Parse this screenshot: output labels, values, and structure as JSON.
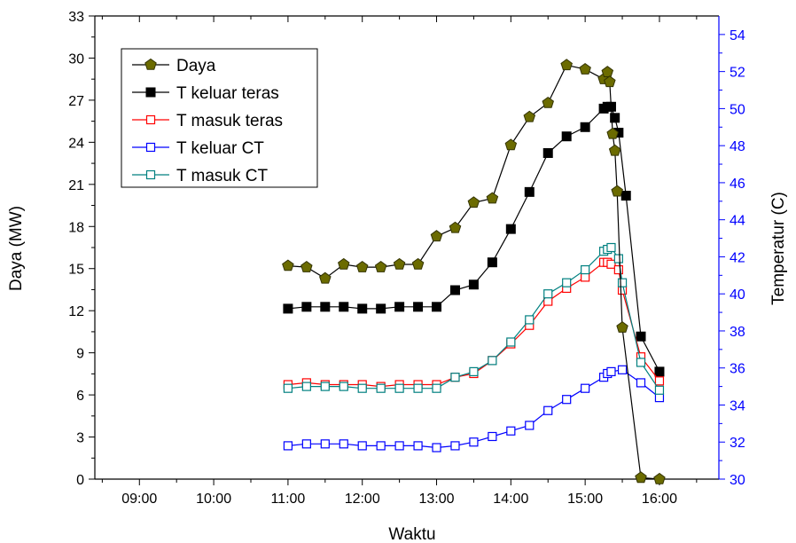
{
  "chart_data": {
    "type": "line",
    "title": "",
    "xlabel": "Waktu",
    "ylabel": "Daya (MW)",
    "y2label": "Temperatur (C)",
    "x_ticks": [
      "09:00",
      "10:00",
      "11:00",
      "12:00",
      "13:00",
      "14:00",
      "15:00",
      "16:00"
    ],
    "xlim": [
      8.4,
      16.8
    ],
    "ylim": [
      0,
      33
    ],
    "y_ticks": [
      0,
      3,
      6,
      9,
      12,
      15,
      18,
      21,
      24,
      27,
      30,
      33
    ],
    "y2lim": [
      30,
      55
    ],
    "y2_ticks": [
      30,
      32,
      34,
      36,
      38,
      40,
      42,
      44,
      46,
      48,
      50,
      52,
      54
    ],
    "grid": false,
    "legend_position": "top-left",
    "colors": {
      "axis": "#000000",
      "right_axis": "#0000ff"
    },
    "series": [
      {
        "name": "Daya",
        "axis": "left",
        "color": "#000000",
        "fill": "#6b6b00",
        "marker": "pentagon",
        "x": [
          11.0,
          11.25,
          11.5,
          11.75,
          12.0,
          12.25,
          12.5,
          12.75,
          13.0,
          13.25,
          13.5,
          13.75,
          14.0,
          14.25,
          14.5,
          14.75,
          15.0,
          15.25,
          15.3,
          15.33,
          15.37,
          15.4,
          15.43,
          15.5,
          15.75,
          16.0
        ],
        "y": [
          15.2,
          15.1,
          14.3,
          15.3,
          15.1,
          15.1,
          15.3,
          15.3,
          17.3,
          17.9,
          19.7,
          20.0,
          23.8,
          25.8,
          26.8,
          29.5,
          29.2,
          28.5,
          29.0,
          28.3,
          24.6,
          23.4,
          20.5,
          10.8,
          0.1,
          0.0
        ]
      },
      {
        "name": "T keluar teras",
        "axis": "right",
        "color": "#000000",
        "fill": "#000000",
        "marker": "square",
        "x": [
          11.0,
          11.25,
          11.5,
          11.75,
          12.0,
          12.25,
          12.5,
          12.75,
          13.0,
          13.25,
          13.5,
          13.75,
          14.0,
          14.25,
          14.5,
          14.75,
          15.0,
          15.25,
          15.3,
          15.35,
          15.4,
          15.45,
          15.55,
          15.75,
          16.0
        ],
        "y": [
          39.2,
          39.3,
          39.3,
          39.3,
          39.2,
          39.2,
          39.3,
          39.3,
          39.3,
          40.2,
          40.5,
          41.7,
          43.5,
          45.5,
          47.6,
          48.5,
          49.0,
          50.0,
          50.1,
          50.1,
          49.5,
          48.7,
          45.3,
          37.7,
          35.8
        ]
      },
      {
        "name": "T masuk teras",
        "axis": "right",
        "color": "#ff0000",
        "fill": "#ffffff",
        "marker": "open-square",
        "x": [
          11.0,
          11.25,
          11.5,
          11.75,
          12.0,
          12.25,
          12.5,
          12.75,
          13.0,
          13.25,
          13.5,
          13.75,
          14.0,
          14.25,
          14.5,
          14.75,
          15.0,
          15.25,
          15.3,
          15.35,
          15.45,
          15.5,
          15.75,
          16.0
        ],
        "y": [
          35.1,
          35.2,
          35.1,
          35.1,
          35.1,
          35.0,
          35.1,
          35.1,
          35.1,
          35.5,
          35.7,
          36.4,
          37.3,
          38.3,
          39.6,
          40.3,
          40.9,
          41.7,
          41.7,
          41.6,
          41.3,
          40.2,
          36.6,
          35.3
        ]
      },
      {
        "name": "T keluar CT",
        "axis": "right",
        "color": "#0000ff",
        "fill": "#ffffff",
        "marker": "open-square",
        "x": [
          11.0,
          11.25,
          11.5,
          11.75,
          12.0,
          12.25,
          12.5,
          12.75,
          13.0,
          13.25,
          13.5,
          13.75,
          14.0,
          14.25,
          14.5,
          14.75,
          15.0,
          15.25,
          15.3,
          15.35,
          15.5,
          15.75,
          16.0
        ],
        "y": [
          31.8,
          31.9,
          31.9,
          31.9,
          31.8,
          31.8,
          31.8,
          31.8,
          31.7,
          31.8,
          32.0,
          32.3,
          32.6,
          32.9,
          33.7,
          34.3,
          34.9,
          35.5,
          35.7,
          35.8,
          35.9,
          35.2,
          34.4
        ]
      },
      {
        "name": "T masuk CT",
        "axis": "right",
        "color": "#008080",
        "fill": "#ffffff",
        "marker": "open-square",
        "x": [
          11.0,
          11.25,
          11.5,
          11.75,
          12.0,
          12.25,
          12.5,
          12.75,
          13.0,
          13.25,
          13.5,
          13.75,
          14.0,
          14.25,
          14.5,
          14.75,
          15.0,
          15.25,
          15.3,
          15.35,
          15.45,
          15.5,
          15.75,
          16.0
        ],
        "y": [
          34.9,
          35.0,
          35.0,
          35.0,
          34.9,
          34.9,
          34.9,
          34.9,
          34.9,
          35.5,
          35.8,
          36.4,
          37.4,
          38.6,
          40.0,
          40.6,
          41.3,
          42.3,
          42.4,
          42.5,
          41.9,
          40.6,
          36.3,
          34.8
        ]
      }
    ]
  }
}
